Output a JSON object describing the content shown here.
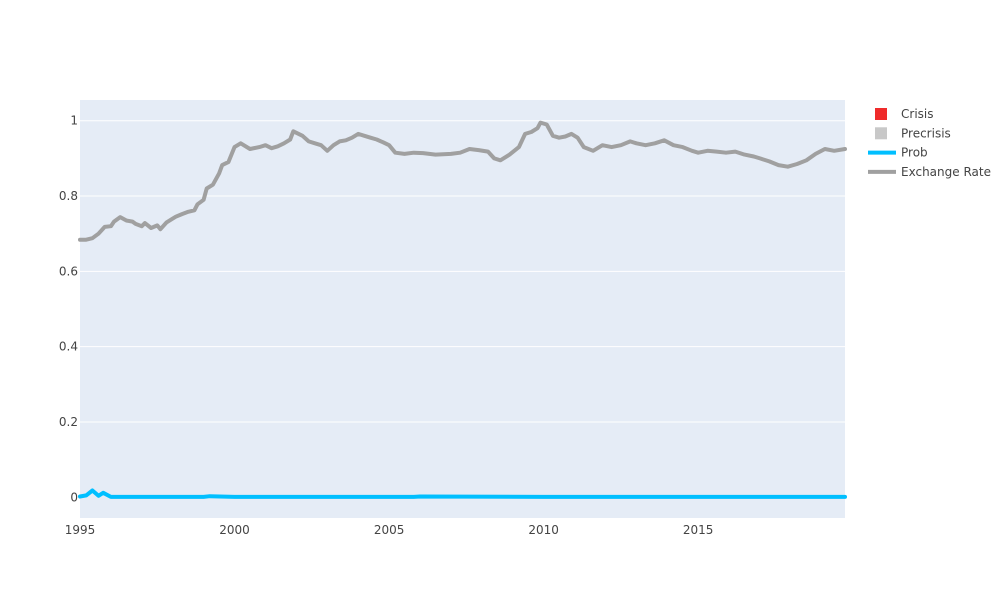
{
  "chart_data": {
    "type": "line",
    "title": "",
    "xlabel": "",
    "ylabel": "",
    "xlim": [
      1995,
      2019.75
    ],
    "ylim": [
      -0.055,
      1.055
    ],
    "x_ticks": [
      "1995",
      "2000",
      "2005",
      "2010",
      "2015"
    ],
    "x_tick_values": [
      1995,
      2000,
      2005,
      2010,
      2015
    ],
    "y_ticks": [
      "0",
      "0.2",
      "0.4",
      "0.6",
      "0.8",
      "1"
    ],
    "y_tick_values": [
      0,
      0.2,
      0.4,
      0.6,
      0.8,
      1
    ],
    "grid": true,
    "legend_position": "top-right",
    "plot_background": "#e5ecf6",
    "legend": [
      {
        "name": "Crisis",
        "kind": "square",
        "color": "#ef2b2b"
      },
      {
        "name": "Precrisis",
        "kind": "square",
        "color": "#c8c8c8"
      },
      {
        "name": "Prob",
        "kind": "line",
        "color": "#00bfff"
      },
      {
        "name": "Exchange Rate",
        "kind": "line",
        "color": "#a0a0a0"
      }
    ],
    "series": [
      {
        "name": "Exchange Rate",
        "color": "#a0a0a0",
        "x": [
          1995.0,
          1995.2,
          1995.4,
          1995.6,
          1995.8,
          1996.0,
          1996.1,
          1996.3,
          1996.5,
          1996.7,
          1996.8,
          1997.0,
          1997.1,
          1997.3,
          1997.5,
          1997.6,
          1997.8,
          1998.0,
          1998.1,
          1998.3,
          1998.5,
          1998.7,
          1998.8,
          1999.0,
          1999.1,
          1999.3,
          1999.5,
          1999.6,
          1999.8,
          2000.0,
          2000.2,
          2000.5,
          2000.8,
          2001.0,
          2001.2,
          2001.4,
          2001.6,
          2001.8,
          2001.9,
          2002.2,
          2002.4,
          2002.6,
          2002.8,
          2003.0,
          2003.2,
          2003.4,
          2003.6,
          2003.8,
          2004.0,
          2004.2,
          2004.4,
          2004.6,
          2004.8,
          2005.0,
          2005.2,
          2005.5,
          2005.8,
          2006.1,
          2006.5,
          2007.0,
          2007.3,
          2007.6,
          2007.9,
          2008.2,
          2008.4,
          2008.6,
          2008.9,
          2009.2,
          2009.4,
          2009.6,
          2009.8,
          2009.9,
          2010.1,
          2010.3,
          2010.5,
          2010.7,
          2010.9,
          2011.1,
          2011.3,
          2011.6,
          2011.9,
          2012.2,
          2012.5,
          2012.8,
          2013.0,
          2013.3,
          2013.6,
          2013.9,
          2014.2,
          2014.5,
          2014.8,
          2015.0,
          2015.3,
          2015.6,
          2015.9,
          2016.2,
          2016.5,
          2016.8,
          2017.0,
          2017.3,
          2017.6,
          2017.9,
          2018.2,
          2018.5,
          2018.8,
          2019.1,
          2019.4,
          2019.75
        ],
        "values": [
          0.684,
          0.684,
          0.688,
          0.7,
          0.718,
          0.72,
          0.732,
          0.744,
          0.735,
          0.732,
          0.726,
          0.72,
          0.728,
          0.715,
          0.722,
          0.712,
          0.73,
          0.74,
          0.745,
          0.752,
          0.758,
          0.762,
          0.778,
          0.79,
          0.82,
          0.83,
          0.86,
          0.882,
          0.89,
          0.93,
          0.94,
          0.925,
          0.93,
          0.935,
          0.927,
          0.932,
          0.94,
          0.95,
          0.972,
          0.96,
          0.945,
          0.94,
          0.935,
          0.92,
          0.935,
          0.945,
          0.948,
          0.955,
          0.965,
          0.96,
          0.955,
          0.95,
          0.943,
          0.935,
          0.915,
          0.912,
          0.915,
          0.914,
          0.91,
          0.912,
          0.915,
          0.925,
          0.922,
          0.918,
          0.9,
          0.895,
          0.91,
          0.93,
          0.965,
          0.97,
          0.98,
          0.995,
          0.99,
          0.96,
          0.955,
          0.958,
          0.965,
          0.955,
          0.93,
          0.92,
          0.935,
          0.93,
          0.935,
          0.945,
          0.94,
          0.935,
          0.94,
          0.948,
          0.935,
          0.93,
          0.92,
          0.915,
          0.92,
          0.918,
          0.915,
          0.918,
          0.91,
          0.905,
          0.9,
          0.892,
          0.882,
          0.878,
          0.885,
          0.895,
          0.912,
          0.925,
          0.92,
          0.925
        ]
      },
      {
        "name": "Prob",
        "color": "#00bfff",
        "x": [
          1995.0,
          1995.2,
          1995.4,
          1995.6,
          1995.75,
          1996.0,
          1996.2,
          1997.0,
          1999.0,
          1999.2,
          2000.0,
          2005.8,
          2006.0,
          2010.0,
          2015.0,
          2019.75
        ],
        "values": [
          0.002,
          0.005,
          0.018,
          0.004,
          0.012,
          0.001,
          0.001,
          0.001,
          0.001,
          0.003,
          0.001,
          0.001,
          0.002,
          0.001,
          0.001,
          0.001
        ]
      }
    ]
  }
}
